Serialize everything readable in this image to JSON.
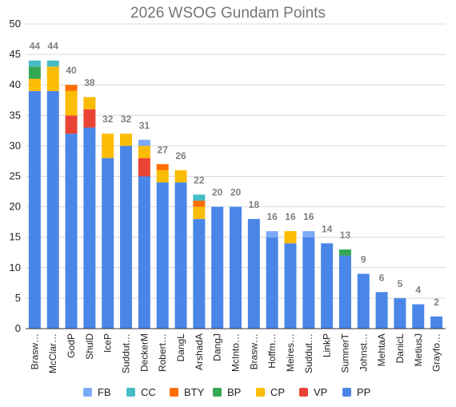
{
  "chart_data": {
    "type": "bar",
    "stacked": true,
    "title": "2026 WSOG Gundam Points",
    "xlabel": "",
    "ylabel": "",
    "ylim": [
      0,
      50
    ],
    "yticks": [
      0,
      5,
      10,
      15,
      20,
      25,
      30,
      35,
      40,
      45,
      50
    ],
    "grid": true,
    "legend_position": "bottom",
    "categories": [
      "Brasw…",
      "McClar…",
      "GodP",
      "ShulD",
      "IceP",
      "Suddut…",
      "DeckerM",
      "Robert…",
      "DangL",
      "ArshadA",
      "DangJ",
      "McInto…",
      "Brasw…",
      "Hoffm…",
      "Meires…",
      "Suddut…",
      "LinkP",
      "SumnerT",
      "Johnst…",
      "MehtaA",
      "DanicL",
      "MetiusJ",
      "Grayfo…"
    ],
    "totals": [
      44,
      44,
      40,
      38,
      32,
      32,
      31,
      27,
      26,
      22,
      20,
      20,
      18,
      16,
      16,
      16,
      14,
      13,
      9,
      6,
      5,
      4,
      2
    ],
    "series": [
      {
        "name": "PP",
        "color": "#4a86e8",
        "values": [
          39,
          39,
          32,
          33,
          28,
          30,
          25,
          24,
          24,
          18,
          20,
          20,
          18,
          15,
          14,
          15,
          14,
          12,
          9,
          6,
          5,
          4,
          2
        ]
      },
      {
        "name": "VP",
        "color": "#ea4335",
        "values": [
          0,
          0,
          3,
          3,
          0,
          0,
          3,
          0,
          0,
          0,
          0,
          0,
          0,
          0,
          0,
          0,
          0,
          0,
          0,
          0,
          0,
          0,
          0
        ]
      },
      {
        "name": "CP",
        "color": "#fbbc04",
        "values": [
          2,
          4,
          4,
          2,
          4,
          2,
          2,
          2,
          2,
          2,
          0,
          0,
          0,
          0,
          2,
          0,
          0,
          0,
          0,
          0,
          0,
          0,
          0
        ]
      },
      {
        "name": "BP",
        "color": "#34a853",
        "values": [
          2,
          0,
          0,
          0,
          0,
          0,
          0,
          0,
          0,
          0,
          0,
          0,
          0,
          0,
          0,
          0,
          0,
          1,
          0,
          0,
          0,
          0,
          0
        ]
      },
      {
        "name": "BTY",
        "color": "#ff6d01",
        "values": [
          0,
          0,
          1,
          0,
          0,
          0,
          0,
          1,
          0,
          1,
          0,
          0,
          0,
          0,
          0,
          0,
          0,
          0,
          0,
          0,
          0,
          0,
          0
        ]
      },
      {
        "name": "CC",
        "color": "#46bdc6",
        "values": [
          1,
          1,
          0,
          0,
          0,
          0,
          0,
          0,
          0,
          1,
          0,
          0,
          0,
          0,
          0,
          0,
          0,
          0,
          0,
          0,
          0,
          0,
          0
        ]
      },
      {
        "name": "FB",
        "color": "#7baaf7",
        "values": [
          0,
          0,
          0,
          0,
          0,
          0,
          1,
          0,
          0,
          0,
          0,
          0,
          0,
          1,
          0,
          1,
          0,
          0,
          0,
          0,
          0,
          0,
          0
        ]
      }
    ],
    "legend_order": [
      "FB",
      "CC",
      "BTY",
      "BP",
      "CP",
      "VP",
      "PP"
    ]
  }
}
